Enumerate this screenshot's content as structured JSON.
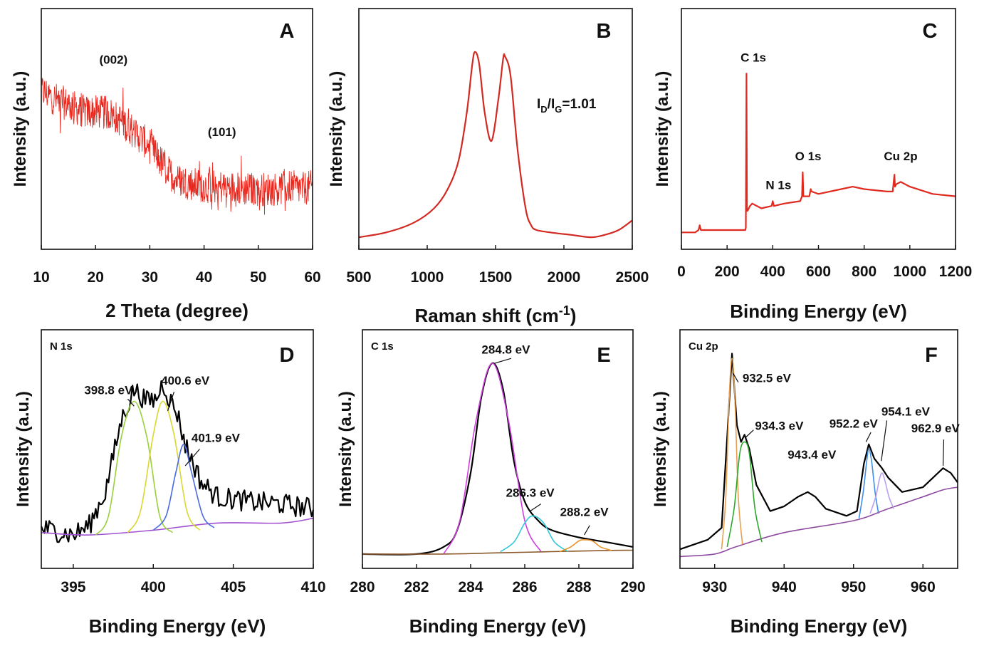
{
  "panels": [
    {
      "id": "A",
      "type": "line",
      "letter": "A",
      "corner_label": "",
      "xlabel": "2 Theta (degree)",
      "ylabel": "Intensity (a.u.)",
      "xlim": [
        10,
        60
      ],
      "ylim": [
        0,
        100
      ],
      "xticks": [
        "10",
        "20",
        "30",
        "40",
        "50",
        "60"
      ],
      "noisy": true,
      "series": [
        {
          "name": "XRD",
          "color": "#e8281e",
          "x": [
            10,
            12,
            15,
            18,
            21,
            23,
            25,
            27,
            29,
            31,
            33,
            35,
            38,
            41,
            44,
            47,
            50,
            53,
            56,
            58,
            60
          ],
          "y": [
            66,
            63,
            60,
            57,
            57,
            56,
            53,
            49,
            45,
            40,
            33,
            29,
            27,
            26,
            26,
            25,
            25,
            25,
            26,
            25,
            26
          ]
        }
      ],
      "annotations": [
        {
          "text": "(002)",
          "x": 23.3,
          "y": 77
        },
        {
          "text": "(101)",
          "x": 43.3,
          "y": 47
        }
      ]
    },
    {
      "id": "B",
      "type": "line",
      "letter": "B",
      "corner_label": "",
      "xlabel": "Raman shift (cm-1)",
      "xlabel_parts": {
        "main": "Raman shift (cm",
        "sup": "-1",
        "close": ")"
      },
      "ylabel": "Intensity (a.u.)",
      "xlim": [
        500,
        2500
      ],
      "ylim": [
        0,
        100
      ],
      "xticks": [
        "500",
        "1000",
        "1500",
        "2000",
        "2500"
      ],
      "series": [
        {
          "name": "Raman",
          "color": "#d22a22",
          "x": [
            500,
            700,
            900,
            1050,
            1150,
            1230,
            1290,
            1330,
            1350,
            1380,
            1420,
            1470,
            1520,
            1555,
            1570,
            1610,
            1660,
            1720,
            1760,
            1800,
            1900,
            2050,
            2200,
            2300,
            2400,
            2500
          ],
          "y": [
            5,
            7,
            11,
            17,
            25,
            37,
            57,
            77,
            82,
            77,
            57,
            45,
            62,
            79,
            80,
            72,
            42,
            17,
            10,
            8,
            7,
            6,
            5,
            6,
            8,
            12
          ]
        }
      ],
      "annotations": [
        {
          "text": "ID/IG=1.01",
          "base": "I",
          "sub1": "D",
          "mid": "/I",
          "sub2": "G",
          "rest": "=1.01"
        }
      ]
    },
    {
      "id": "C",
      "type": "line",
      "letter": "C",
      "corner_label": "",
      "xlabel": "Binding Energy (eV)",
      "ylabel": "Intensity (a.u.)",
      "xlim": [
        0,
        1200
      ],
      "ylim": [
        0,
        100
      ],
      "xticks": [
        "0",
        "200",
        "400",
        "600",
        "800",
        "1000",
        "1200"
      ],
      "series": [
        {
          "name": "Survey",
          "color": "#e02a20",
          "x": [
            0,
            60,
            75,
            80,
            85,
            200,
            280,
            282,
            284.8,
            287,
            290,
            300,
            310,
            350,
            395,
            400,
            405,
            450,
            520,
            528,
            531,
            534,
            540,
            560,
            566,
            570,
            600,
            700,
            750,
            800,
            900,
            925,
            932.5,
            935,
            940,
            960,
            1000,
            1100,
            1200
          ],
          "y": [
            7,
            7,
            8,
            10,
            8,
            8,
            8,
            9,
            73,
            16,
            16,
            18,
            19,
            17,
            18,
            20,
            18,
            19,
            20,
            22,
            32,
            22,
            22,
            22,
            25,
            24,
            23,
            25,
            26,
            25,
            24,
            24,
            31,
            26,
            27,
            28,
            26,
            23,
            22
          ]
        }
      ],
      "annotations": [
        {
          "text": "C 1s",
          "x": 315,
          "y": 78
        },
        {
          "text": "N 1s",
          "x": 425,
          "y": 25
        },
        {
          "text": "O 1s",
          "x": 555,
          "y": 37
        },
        {
          "text": "Cu 2p",
          "x": 960,
          "y": 37
        }
      ]
    },
    {
      "id": "D",
      "type": "line",
      "letter": "D",
      "corner_label": "N 1s",
      "xlabel": "Binding Energy (eV)",
      "ylabel": "Intensity (a.u.)",
      "xlim": [
        393,
        410
      ],
      "ylim": [
        0,
        100
      ],
      "xticks": [
        "395",
        "400",
        "405",
        "410"
      ],
      "noisy_series": [
        0
      ],
      "series": [
        {
          "name": "Raw",
          "color": "#000000",
          "x": [
            393,
            395,
            396,
            397,
            398,
            398.8,
            399.6,
            400.2,
            400.6,
            401,
            401.5,
            402,
            403,
            404,
            406,
            408,
            410
          ],
          "y": [
            17,
            14,
            18,
            32,
            62,
            75,
            70,
            71,
            78,
            71,
            65,
            52,
            36,
            30,
            28,
            27,
            25
          ]
        },
        {
          "name": "Baseline",
          "color": "#a050d0",
          "x": [
            393,
            396,
            400,
            404,
            408,
            410
          ],
          "y": [
            15,
            14,
            16,
            19,
            19,
            21
          ]
        },
        {
          "name": "398.8 eV",
          "color": "#9ad03a",
          "x": [
            396.4,
            397.2,
            398.0,
            398.8,
            399.6,
            400.4,
            401.2
          ],
          "y": [
            14,
            22,
            55,
            70,
            55,
            22,
            15
          ]
        },
        {
          "name": "400.6 eV",
          "color": "#d8d830",
          "x": [
            398.4,
            399.2,
            400.0,
            400.6,
            401.3,
            402.1,
            402.9
          ],
          "y": [
            15,
            24,
            56,
            70,
            56,
            24,
            16
          ]
        },
        {
          "name": "401.9 eV",
          "color": "#4a6ae0",
          "x": [
            400.0,
            400.8,
            401.4,
            401.9,
            402.4,
            403.1,
            403.8
          ],
          "y": [
            16,
            22,
            40,
            52,
            40,
            22,
            17
          ]
        }
      ],
      "annotations": [
        {
          "text": "398.8 eV",
          "x": 397.2,
          "y": 73
        },
        {
          "text": "400.6 eV",
          "x": 402.0,
          "y": 77
        },
        {
          "text": "401.9 eV",
          "x": 403.9,
          "y": 53
        }
      ]
    },
    {
      "id": "E",
      "type": "line",
      "letter": "E",
      "corner_label": "C 1s",
      "xlabel": "Binding Energy (eV)",
      "ylabel": "Intensity (a.u.)",
      "xlim": [
        280,
        290
      ],
      "ylim": [
        0,
        100
      ],
      "xticks": [
        "280",
        "282",
        "284",
        "286",
        "288",
        "290"
      ],
      "series": [
        {
          "name": "Raw",
          "color": "#000000",
          "x": [
            280,
            282,
            283,
            283.5,
            284,
            284.4,
            284.8,
            285.2,
            285.6,
            286,
            286.5,
            287,
            288,
            289,
            290
          ],
          "y": [
            6,
            6,
            9,
            16,
            40,
            72,
            86,
            75,
            45,
            28,
            20,
            16,
            13,
            11,
            9
          ]
        },
        {
          "name": "Baseline",
          "color": "#8b5a2b",
          "x": [
            280,
            283,
            285,
            287,
            289,
            290
          ],
          "y": [
            6,
            6,
            6.5,
            7,
            7.5,
            7.6
          ]
        },
        {
          "name": "284.8 eV",
          "color": "#d040e0",
          "x": [
            283.0,
            283.6,
            284.2,
            284.8,
            285.4,
            286.0,
            286.6
          ],
          "y": [
            6,
            20,
            62,
            86,
            62,
            20,
            7
          ]
        },
        {
          "name": "286.3 eV",
          "color": "#30c8d8",
          "x": [
            285.1,
            285.6,
            286.0,
            286.3,
            286.7,
            287.1,
            287.6
          ],
          "y": [
            7,
            11,
            19,
            22,
            19,
            11,
            7
          ]
        },
        {
          "name": "288.2 eV",
          "color": "#e8922a",
          "x": [
            287.3,
            287.7,
            288.0,
            288.2,
            288.5,
            288.8,
            289.2
          ],
          "y": [
            7,
            9,
            11.5,
            12,
            11.5,
            9,
            7.5
          ]
        }
      ],
      "annotations": [
        {
          "text": "284.8 eV",
          "x": 285.3,
          "y": 90
        },
        {
          "text": "286.3 eV",
          "x": 286.2,
          "y": 30
        },
        {
          "text": "288.2 eV",
          "x": 288.2,
          "y": 22
        }
      ]
    },
    {
      "id": "F",
      "type": "line",
      "letter": "F",
      "corner_label": "Cu 2p",
      "xlabel": "Binding Energy (eV)",
      "ylabel": "Intensity (a.u.)",
      "xlim": [
        925,
        965
      ],
      "ylim": [
        0,
        100
      ],
      "xticks": [
        "930",
        "940",
        "950",
        "960"
      ],
      "series": [
        {
          "name": "Raw",
          "color": "#000000",
          "x": [
            925,
            929,
            931,
            931.8,
            932.5,
            933.2,
            933.8,
            934.3,
            935,
            936,
            938,
            940,
            942,
            943.4,
            944.5,
            946,
            949,
            950.5,
            951.5,
            952.2,
            953,
            954.1,
            955,
            957,
            960,
            962.9,
            964,
            965
          ],
          "y": [
            8,
            12,
            17,
            55,
            90,
            60,
            53,
            56,
            50,
            35,
            24,
            26,
            30,
            32,
            30,
            25,
            22,
            24,
            44,
            52,
            46,
            42,
            38,
            32,
            34,
            42,
            40,
            36
          ]
        },
        {
          "name": "Baseline",
          "color": "#8e4aa0",
          "x": [
            925,
            930,
            933,
            940,
            950,
            955,
            960,
            963,
            965
          ],
          "y": [
            5,
            6,
            9,
            15,
            20,
            25,
            30,
            33,
            34
          ]
        },
        {
          "name": "932.5 eV",
          "color": "#e8a050",
          "x": [
            931.0,
            931.6,
            932.1,
            932.5,
            932.9,
            933.4,
            934.0
          ],
          "y": [
            8,
            30,
            72,
            88,
            72,
            30,
            10
          ]
        },
        {
          "name": "934.3 eV",
          "color": "#2ca82c",
          "x": [
            931.8,
            932.8,
            933.6,
            934.3,
            935.0,
            935.8,
            936.8
          ],
          "y": [
            9,
            25,
            48,
            53,
            48,
            25,
            11
          ]
        },
        {
          "name": "952.2 eV",
          "color": "#3c8ee8",
          "x": [
            950.8,
            951.4,
            951.9,
            952.2,
            952.6,
            953.1,
            953.6
          ],
          "y": [
            21,
            32,
            45,
            50,
            45,
            32,
            23
          ]
        },
        {
          "name": "954.1 eV",
          "color": "#b8a0f0",
          "x": [
            952.4,
            953.2,
            953.7,
            954.1,
            954.5,
            955.1,
            955.8
          ],
          "y": [
            23,
            30,
            37,
            40,
            37,
            30,
            25
          ]
        }
      ],
      "annotations": [
        {
          "text": "932.5 eV",
          "x": 937.5,
          "y": 78
        },
        {
          "text": "934.3 eV",
          "x": 939.3,
          "y": 58
        },
        {
          "text": "943.4 eV",
          "x": 944.0,
          "y": 46
        },
        {
          "text": "952.2 eV",
          "x": 950.0,
          "y": 59
        },
        {
          "text": "954.1 eV",
          "x": 957.5,
          "y": 64
        },
        {
          "text": "962.9 eV",
          "x": 961.8,
          "y": 57
        }
      ]
    }
  ]
}
